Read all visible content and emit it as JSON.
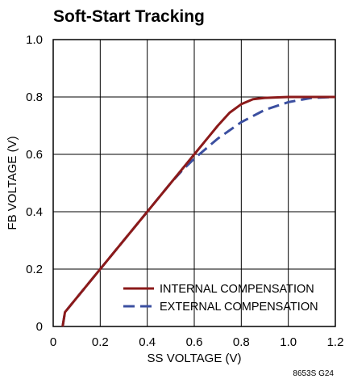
{
  "chart_data": {
    "type": "line",
    "title": "Soft-Start Tracking",
    "xlabel": "SS VOLTAGE (V)",
    "ylabel": "FB VOLTAGE (V)",
    "xlim": [
      0,
      1.2
    ],
    "ylim": [
      0,
      1.0
    ],
    "xticks": [
      "0",
      "0.2",
      "0.4",
      "0.6",
      "0.8",
      "1.0",
      "1.2"
    ],
    "yticks": [
      "0",
      "0.2",
      "0.4",
      "0.6",
      "0.8",
      "1.0"
    ],
    "grid": true,
    "legend_position": "bottom-right",
    "series": [
      {
        "name": "INTERNAL COMPENSATION",
        "color": "#8b1a1a",
        "style": "solid",
        "x": [
          0.04,
          0.05,
          0.2,
          0.4,
          0.6,
          0.7,
          0.75,
          0.8,
          0.85,
          0.9,
          1.0,
          1.1,
          1.2
        ],
        "y": [
          0.0,
          0.05,
          0.2,
          0.4,
          0.6,
          0.7,
          0.745,
          0.775,
          0.792,
          0.797,
          0.8,
          0.8,
          0.8
        ]
      },
      {
        "name": "EXTERNAL COMPENSATION",
        "color": "#3b4fa0",
        "style": "dashed",
        "x": [
          0.04,
          0.05,
          0.2,
          0.4,
          0.5,
          0.55,
          0.6,
          0.7,
          0.8,
          0.9,
          1.0,
          1.1,
          1.2
        ],
        "y": [
          0.0,
          0.05,
          0.2,
          0.4,
          0.5,
          0.545,
          0.585,
          0.655,
          0.712,
          0.755,
          0.782,
          0.797,
          0.8
        ]
      }
    ],
    "figure_number": "8653S G24"
  }
}
